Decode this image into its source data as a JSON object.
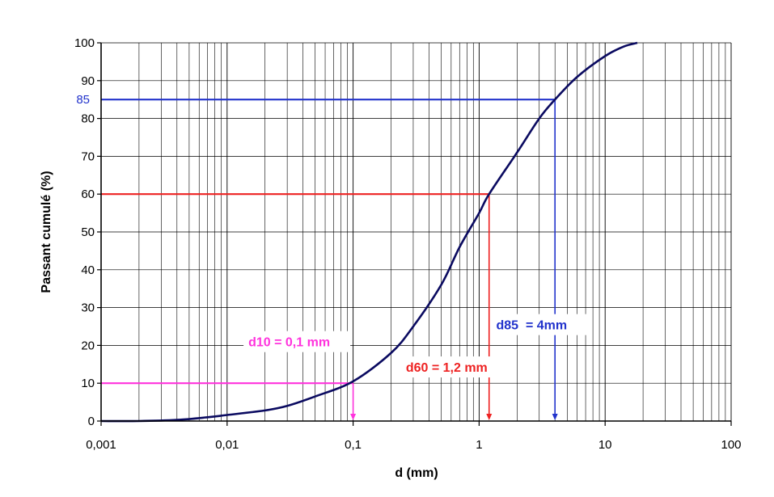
{
  "chart_data": {
    "type": "line",
    "xscale": "log",
    "xlim": [
      0.001,
      100
    ],
    "ylim": [
      0,
      100
    ],
    "grid": true,
    "xlabel": "d (mm)",
    "ylabel": "Passant cumulé (%)",
    "x_tick_labels": [
      "0,001",
      "0,01",
      "0,1",
      "1",
      "10",
      "100"
    ],
    "y_tick_labels": [
      "0",
      "10",
      "20",
      "30",
      "40",
      "50",
      "60",
      "70",
      "80",
      "90",
      "100"
    ],
    "series": [
      {
        "color": "#0a0a60",
        "points": [
          {
            "x": 0.001,
            "y": 0
          },
          {
            "x": 0.002,
            "y": 0
          },
          {
            "x": 0.004,
            "y": 0.3
          },
          {
            "x": 0.007,
            "y": 1
          },
          {
            "x": 0.01,
            "y": 1.6
          },
          {
            "x": 0.02,
            "y": 2.8
          },
          {
            "x": 0.03,
            "y": 4
          },
          {
            "x": 0.05,
            "y": 6.5
          },
          {
            "x": 0.1,
            "y": 10.5
          },
          {
            "x": 0.2,
            "y": 18
          },
          {
            "x": 0.3,
            "y": 25
          },
          {
            "x": 0.5,
            "y": 36
          },
          {
            "x": 0.7,
            "y": 46
          },
          {
            "x": 1.0,
            "y": 55
          },
          {
            "x": 1.2,
            "y": 60
          },
          {
            "x": 2,
            "y": 71
          },
          {
            "x": 3,
            "y": 80
          },
          {
            "x": 4,
            "y": 85
          },
          {
            "x": 6,
            "y": 91
          },
          {
            "x": 10,
            "y": 96.5
          },
          {
            "x": 14,
            "y": 99
          },
          {
            "x": 18,
            "y": 100
          }
        ]
      }
    ],
    "reference_lines": [
      {
        "d": 0.1,
        "p": 10,
        "color": "#ff33dd",
        "label": "d10 = 0,1 mm",
        "p_label": ""
      },
      {
        "d": 1.2,
        "p": 60,
        "color": "#ee2222",
        "label": "d60 = 1,2 mm",
        "p_label": ""
      },
      {
        "d": 4,
        "p": 85,
        "color": "#2233cc",
        "label": "d85  = 4mm",
        "p_label": "85"
      }
    ]
  }
}
